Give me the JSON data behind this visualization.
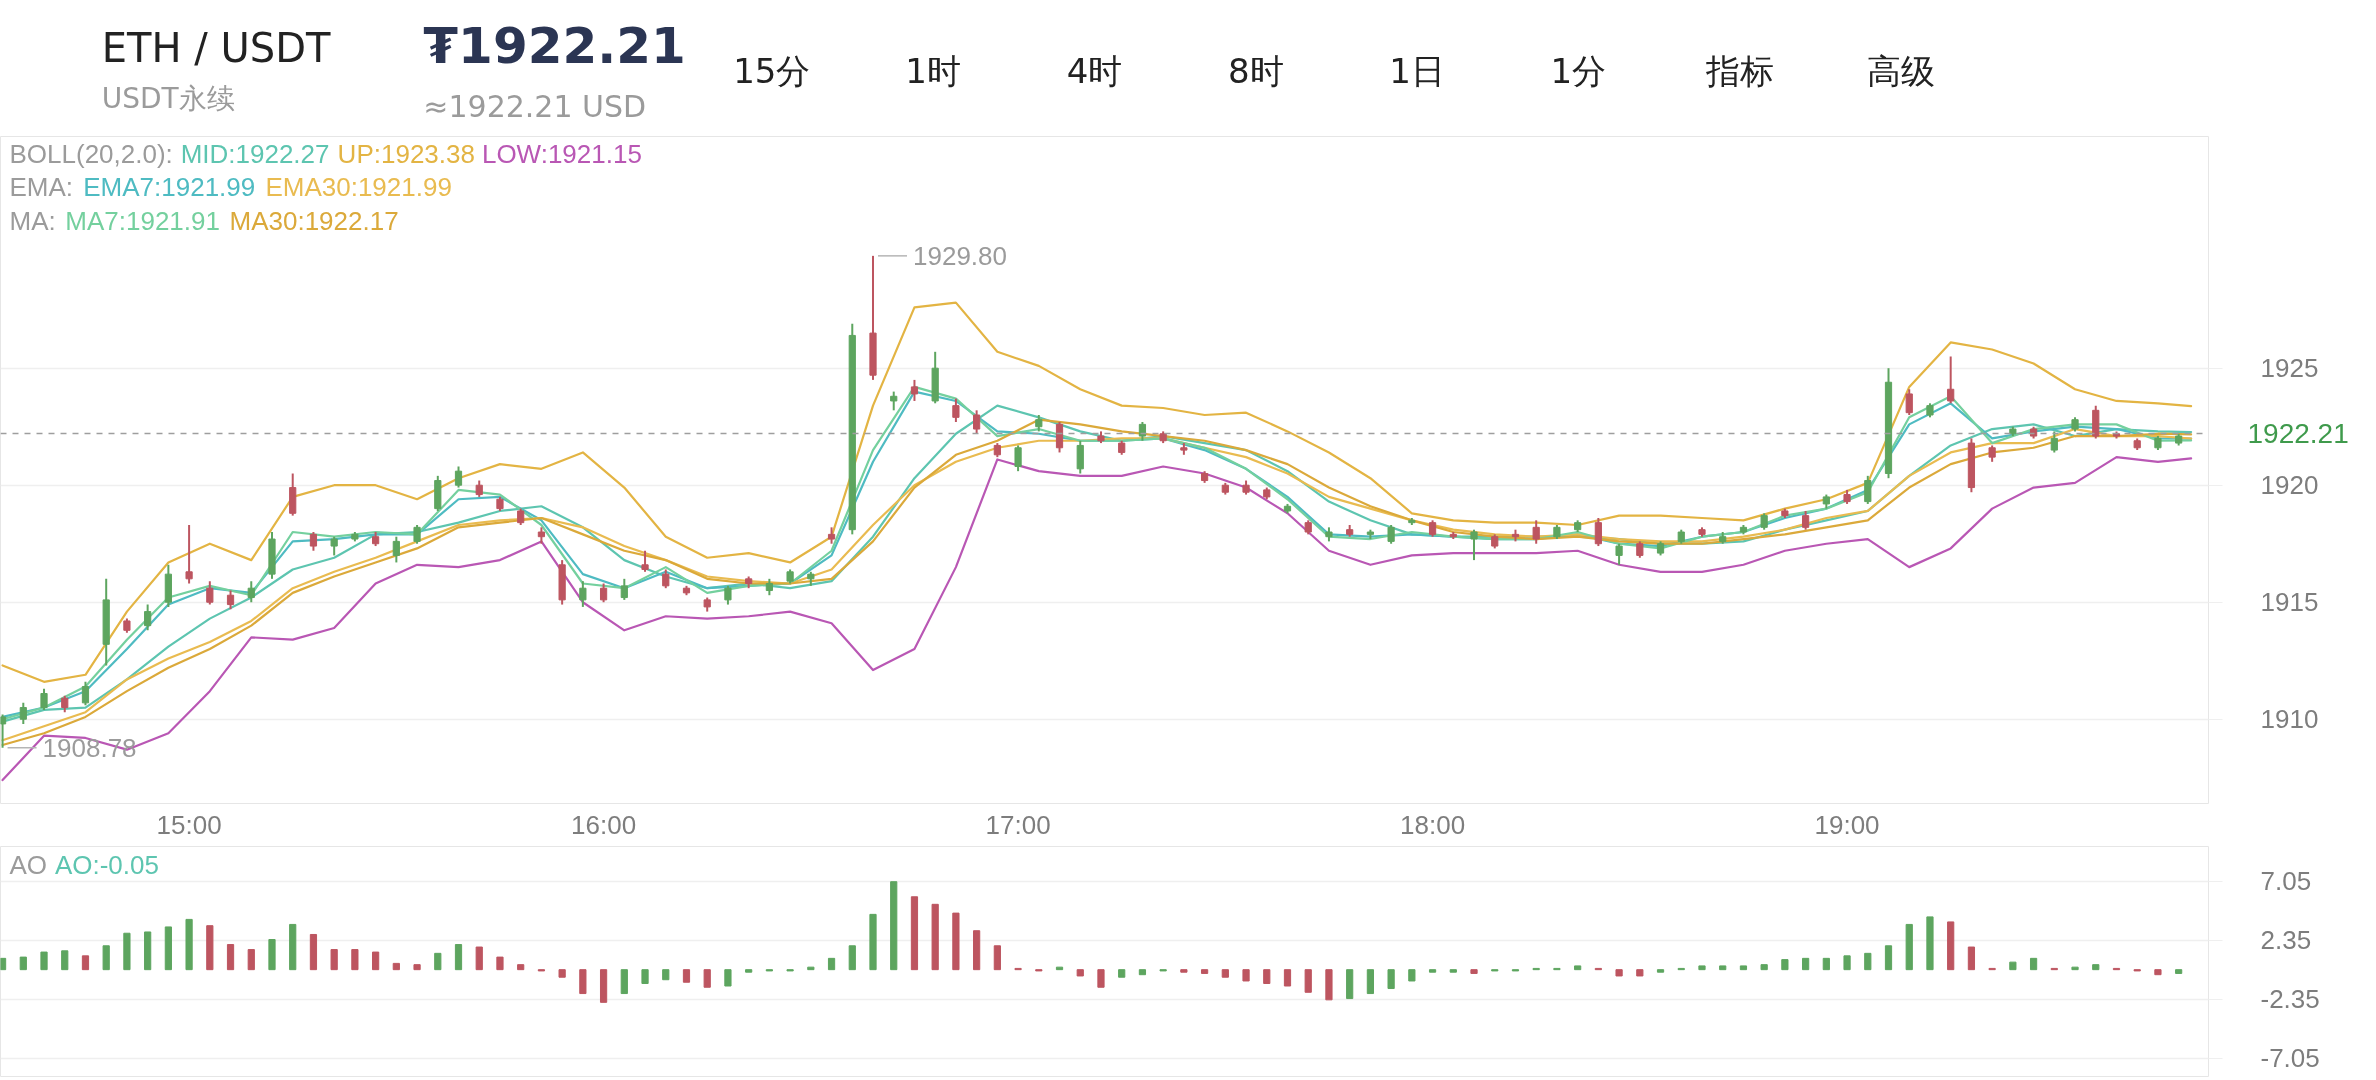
{
  "chart_data": [
    {
      "type": "other",
      "title": "ETH / USDT",
      "subtitle": "USDT永续",
      "annotations": [
        "₮1922.21",
        "≈1922.21 USD",
        "15分",
        "1时",
        "4时",
        "8时",
        "1日",
        "1分",
        "指标",
        "高级"
      ]
    },
    {
      "type": "candlestick",
      "x": [
        14.55,
        14.6,
        14.65,
        14.7,
        14.75,
        14.8,
        14.85,
        14.9,
        14.95,
        15,
        15.05,
        15.1,
        15.15,
        15.2,
        15.25,
        15.3,
        15.35,
        15.4,
        15.45,
        15.5,
        15.55,
        15.6,
        15.65,
        15.7,
        15.75,
        15.8,
        15.85,
        15.9,
        15.95,
        16,
        16.05,
        16.1,
        16.15,
        16.2,
        16.25,
        16.3,
        16.35,
        16.4,
        16.45,
        16.5,
        16.55,
        16.6,
        16.65,
        16.7,
        16.75,
        16.8,
        16.85,
        16.9,
        16.95,
        17,
        17.05,
        17.1,
        17.15,
        17.2,
        17.25,
        17.3,
        17.35,
        17.4,
        17.45,
        17.5,
        17.55,
        17.6,
        17.65,
        17.7,
        17.75,
        17.8,
        17.85,
        17.9,
        17.95,
        18,
        18.05,
        18.1,
        18.15,
        18.2,
        18.25,
        18.3,
        18.35,
        18.4,
        18.45,
        18.5,
        18.55,
        18.6,
        18.65,
        18.7,
        18.75,
        18.8,
        18.85,
        18.9,
        18.95,
        19,
        19.05,
        19.1,
        19.15,
        19.2,
        19.25,
        19.3,
        19.35,
        19.4,
        19.45,
        19.5,
        19.55,
        19.6,
        19.65,
        19.7,
        19.75,
        19.8
      ],
      "ohlc": [
        [
          1909.8,
          1910.2,
          1908.78,
          1910.1
        ],
        [
          1910.0,
          1910.7,
          1909.8,
          1910.5
        ],
        [
          1910.5,
          1911.3,
          1910.4,
          1911.1
        ],
        [
          1910.9,
          1911.0,
          1910.3,
          1910.5
        ],
        [
          1910.7,
          1911.6,
          1910.6,
          1911.4
        ],
        [
          1913.2,
          1916.0,
          1912.3,
          1915.1
        ],
        [
          1914.2,
          1914.3,
          1913.7,
          1913.8
        ],
        [
          1914.0,
          1914.9,
          1913.8,
          1914.6
        ],
        [
          1915.0,
          1916.6,
          1914.8,
          1916.2
        ],
        [
          1916.3,
          1918.3,
          1915.8,
          1916.0
        ],
        [
          1915.6,
          1915.9,
          1914.9,
          1915.0
        ],
        [
          1915.3,
          1915.5,
          1914.7,
          1914.9
        ],
        [
          1915.2,
          1915.9,
          1915.0,
          1915.6
        ],
        [
          1916.2,
          1918.0,
          1916.0,
          1917.7
        ],
        [
          1919.9,
          1920.5,
          1918.7,
          1918.8
        ],
        [
          1917.9,
          1918.0,
          1917.2,
          1917.4
        ],
        [
          1917.4,
          1917.8,
          1917.0,
          1917.7
        ],
        [
          1917.7,
          1918.0,
          1917.6,
          1917.9
        ],
        [
          1917.8,
          1918.0,
          1917.4,
          1917.5
        ],
        [
          1917.0,
          1917.8,
          1916.7,
          1917.6
        ],
        [
          1917.6,
          1918.3,
          1917.5,
          1918.2
        ],
        [
          1919.0,
          1920.4,
          1918.9,
          1920.2
        ],
        [
          1920.0,
          1920.8,
          1919.9,
          1920.6
        ],
        [
          1920.0,
          1920.2,
          1919.5,
          1919.6
        ],
        [
          1919.4,
          1919.5,
          1918.9,
          1919.0
        ],
        [
          1918.9,
          1919.0,
          1918.3,
          1918.4
        ],
        [
          1918.0,
          1918.2,
          1917.5,
          1917.8
        ],
        [
          1916.6,
          1916.8,
          1914.9,
          1915.1
        ],
        [
          1915.1,
          1915.9,
          1914.8,
          1915.6
        ],
        [
          1915.6,
          1915.8,
          1915.0,
          1915.1
        ],
        [
          1915.2,
          1916.0,
          1915.1,
          1915.7
        ],
        [
          1916.6,
          1917.2,
          1916.3,
          1916.4
        ],
        [
          1916.2,
          1916.4,
          1915.6,
          1915.7
        ],
        [
          1915.6,
          1915.7,
          1915.3,
          1915.4
        ],
        [
          1915.1,
          1915.2,
          1914.6,
          1914.8
        ],
        [
          1915.1,
          1915.7,
          1914.9,
          1915.6
        ],
        [
          1916.0,
          1916.1,
          1915.6,
          1915.8
        ],
        [
          1915.5,
          1916.0,
          1915.3,
          1915.8
        ],
        [
          1915.9,
          1916.4,
          1915.8,
          1916.3
        ],
        [
          1916.0,
          1916.3,
          1915.7,
          1916.2
        ],
        [
          1917.9,
          1918.2,
          1917.5,
          1917.7
        ],
        [
          1918.1,
          1926.9,
          1917.9,
          1926.4
        ],
        [
          1926.5,
          1929.8,
          1924.5,
          1924.7
        ],
        [
          1923.6,
          1924.0,
          1923.2,
          1923.8
        ],
        [
          1924.2,
          1924.5,
          1923.6,
          1923.9
        ],
        [
          1923.6,
          1925.7,
          1923.5,
          1925.0
        ],
        [
          1923.4,
          1923.7,
          1922.7,
          1922.9
        ],
        [
          1923.0,
          1923.2,
          1922.2,
          1922.4
        ],
        [
          1921.7,
          1921.8,
          1921.2,
          1921.3
        ],
        [
          1920.8,
          1921.7,
          1920.6,
          1921.6
        ],
        [
          1922.5,
          1923.0,
          1922.3,
          1922.8
        ],
        [
          1922.6,
          1922.7,
          1921.4,
          1921.6
        ],
        [
          1920.7,
          1921.9,
          1920.5,
          1921.7
        ],
        [
          1922.1,
          1922.3,
          1921.8,
          1921.9
        ],
        [
          1921.8,
          1921.9,
          1921.3,
          1921.4
        ],
        [
          1922.1,
          1922.7,
          1921.9,
          1922.6
        ],
        [
          1922.2,
          1922.3,
          1921.8,
          1921.9
        ],
        [
          1921.6,
          1921.8,
          1921.3,
          1921.5
        ],
        [
          1920.5,
          1920.6,
          1920.1,
          1920.2
        ],
        [
          1920.0,
          1920.1,
          1919.6,
          1919.7
        ],
        [
          1920.0,
          1920.2,
          1919.6,
          1919.7
        ],
        [
          1919.8,
          1919.9,
          1919.4,
          1919.5
        ],
        [
          1918.9,
          1919.2,
          1918.8,
          1919.1
        ],
        [
          1918.4,
          1918.5,
          1917.9,
          1918.0
        ],
        [
          1917.8,
          1918.2,
          1917.6,
          1918.0
        ],
        [
          1918.1,
          1918.3,
          1917.8,
          1917.9
        ],
        [
          1917.9,
          1918.1,
          1917.7,
          1918.0
        ],
        [
          1917.6,
          1918.3,
          1917.5,
          1918.2
        ],
        [
          1918.4,
          1918.6,
          1918.3,
          1918.5
        ],
        [
          1918.4,
          1918.5,
          1917.8,
          1917.9
        ],
        [
          1917.9,
          1918.0,
          1917.7,
          1917.8
        ],
        [
          1917.7,
          1918.1,
          1916.8,
          1918.0
        ],
        [
          1917.8,
          1917.9,
          1917.3,
          1917.4
        ],
        [
          1917.9,
          1918.1,
          1917.6,
          1917.8
        ],
        [
          1918.2,
          1918.5,
          1917.5,
          1917.7
        ],
        [
          1917.8,
          1918.3,
          1917.7,
          1918.2
        ],
        [
          1918.1,
          1918.5,
          1918.0,
          1918.4
        ],
        [
          1918.4,
          1918.6,
          1917.4,
          1917.5
        ],
        [
          1917.0,
          1917.5,
          1916.6,
          1917.4
        ],
        [
          1917.5,
          1917.6,
          1916.9,
          1917.0
        ],
        [
          1917.1,
          1917.6,
          1917.0,
          1917.5
        ],
        [
          1917.6,
          1918.1,
          1917.5,
          1918.0
        ],
        [
          1918.1,
          1918.2,
          1917.8,
          1917.9
        ],
        [
          1917.6,
          1918.0,
          1917.5,
          1917.8
        ],
        [
          1918.0,
          1918.3,
          1917.9,
          1918.2
        ],
        [
          1918.2,
          1918.8,
          1918.1,
          1918.7
        ],
        [
          1918.9,
          1919.0,
          1918.6,
          1918.7
        ],
        [
          1918.7,
          1918.9,
          1918.1,
          1918.2
        ],
        [
          1919.2,
          1919.6,
          1919.0,
          1919.5
        ],
        [
          1919.6,
          1919.8,
          1919.2,
          1919.3
        ],
        [
          1919.3,
          1920.4,
          1919.2,
          1920.2
        ],
        [
          1920.5,
          1925.0,
          1920.3,
          1924.4
        ],
        [
          1923.9,
          1924.1,
          1923.0,
          1923.1
        ],
        [
          1923.0,
          1923.5,
          1922.9,
          1923.4
        ],
        [
          1924.1,
          1925.5,
          1923.5,
          1923.6
        ],
        [
          1921.8,
          1922.0,
          1919.7,
          1919.9
        ],
        [
          1921.6,
          1921.7,
          1921.0,
          1921.2
        ],
        [
          1922.2,
          1922.5,
          1922.1,
          1922.4
        ],
        [
          1922.4,
          1922.5,
          1922.0,
          1922.1
        ],
        [
          1921.5,
          1922.3,
          1921.4,
          1922.0
        ],
        [
          1922.4,
          1922.9,
          1922.3,
          1922.8
        ],
        [
          1923.2,
          1923.4,
          1922.0,
          1922.1
        ],
        [
          1922.2,
          1922.3,
          1922.0,
          1922.1
        ],
        [
          1921.9,
          1922.0,
          1921.5,
          1921.6
        ],
        [
          1921.6,
          1922.1,
          1921.5,
          1922.0
        ],
        [
          1921.8,
          1922.2,
          1921.7,
          1922.1
        ]
      ],
      "colors": [
        "#5da55f",
        "#5da55f",
        "#5da55f",
        "#bd5560",
        "#5da55f",
        "#5da55f",
        "#bd5560",
        "#5da55f",
        "#5da55f",
        "#bd5560",
        "#bd5560",
        "#bd5560",
        "#5da55f",
        "#5da55f",
        "#bd5560",
        "#bd5560",
        "#5da55f",
        "#5da55f",
        "#bd5560",
        "#5da55f",
        "#5da55f",
        "#5da55f",
        "#5da55f",
        "#bd5560",
        "#bd5560",
        "#bd5560",
        "#bd5560",
        "#bd5560",
        "#5da55f",
        "#bd5560",
        "#5da55f",
        "#bd5560",
        "#bd5560",
        "#bd5560",
        "#bd5560",
        "#5da55f",
        "#bd5560",
        "#5da55f",
        "#5da55f",
        "#5da55f",
        "#bd5560",
        "#5da55f",
        "#bd5560",
        "#5da55f",
        "#bd5560",
        "#5da55f",
        "#bd5560",
        "#bd5560",
        "#bd5560",
        "#5da55f",
        "#5da55f",
        "#bd5560",
        "#5da55f",
        "#bd5560",
        "#bd5560",
        "#5da55f",
        "#bd5560",
        "#bd5560",
        "#bd5560",
        "#bd5560",
        "#bd5560",
        "#bd5560",
        "#5da55f",
        "#bd5560",
        "#5da55f",
        "#bd5560",
        "#5da55f",
        "#5da55f",
        "#5da55f",
        "#bd5560",
        "#bd5560",
        "#5da55f",
        "#bd5560",
        "#bd5560",
        "#bd5560",
        "#5da55f",
        "#5da55f",
        "#bd5560",
        "#5da55f",
        "#bd5560",
        "#5da55f",
        "#5da55f",
        "#bd5560",
        "#5da55f",
        "#5da55f",
        "#5da55f",
        "#bd5560",
        "#bd5560",
        "#5da55f",
        "#bd5560",
        "#5da55f",
        "#5da55f",
        "#bd5560",
        "#5da55f",
        "#bd5560",
        "#bd5560",
        "#bd5560",
        "#5da55f",
        "#bd5560",
        "#5da55f",
        "#5da55f",
        "#bd5560",
        "#bd5560",
        "#bd5560",
        "#5da55f",
        "#5da55f"
      ],
      "series": [
        {
          "name": "MID:1922.27",
          "type": "line",
          "color": "#5dc5b0",
          "x": [
            14.55,
            14.65,
            14.75,
            14.85,
            14.95,
            15.05,
            15.15,
            15.25,
            15.35,
            15.45,
            15.55,
            15.65,
            15.75,
            15.85,
            15.95,
            16.05,
            16.15,
            16.25,
            16.35,
            16.45,
            16.55,
            16.65,
            16.75,
            16.85,
            16.95,
            17.05,
            17.15,
            17.25,
            17.35,
            17.45,
            17.55,
            17.65,
            17.75,
            17.85,
            17.95,
            18.05,
            18.15,
            18.25,
            18.35,
            18.45,
            18.55,
            18.65,
            18.75,
            18.85,
            18.95,
            19.05,
            19.15,
            19.25,
            19.35,
            19.45,
            19.55,
            19.65,
            19.75,
            19.83
          ],
          "values": [
            1909.9,
            1910.4,
            1910.5,
            1911.7,
            1913.1,
            1914.3,
            1915.2,
            1916.4,
            1916.9,
            1917.9,
            1918.0,
            1918.4,
            1918.9,
            1919.1,
            1918.2,
            1916.8,
            1916.1,
            1915.6,
            1915.8,
            1915.6,
            1915.9,
            1917.8,
            1920.3,
            1922.2,
            1923.4,
            1922.9,
            1922.3,
            1921.9,
            1922.1,
            1921.8,
            1921.5,
            1920.6,
            1919.3,
            1918.5,
            1917.9,
            1917.8,
            1917.8,
            1917.8,
            1917.8,
            1917.7,
            1917.5,
            1917.5,
            1917.6,
            1918.1,
            1918.5,
            1918.9,
            1920.4,
            1921.7,
            1922.4,
            1922.6,
            1922.1,
            1922.4,
            1922.3,
            1922.27
          ]
        },
        {
          "name": "UP:1923.38",
          "type": "line",
          "color": "#e3b443",
          "x": [
            14.55,
            14.65,
            14.75,
            14.85,
            14.95,
            15.05,
            15.15,
            15.25,
            15.35,
            15.45,
            15.55,
            15.65,
            15.75,
            15.85,
            15.95,
            16.05,
            16.15,
            16.25,
            16.35,
            16.45,
            16.55,
            16.65,
            16.75,
            16.85,
            16.95,
            17.05,
            17.15,
            17.25,
            17.35,
            17.45,
            17.55,
            17.65,
            17.75,
            17.85,
            17.95,
            18.05,
            18.15,
            18.25,
            18.35,
            18.45,
            18.55,
            18.65,
            18.75,
            18.85,
            18.95,
            19.05,
            19.15,
            19.25,
            19.35,
            19.45,
            19.55,
            19.65,
            19.75,
            19.83
          ],
          "values": [
            1912.3,
            1911.6,
            1911.9,
            1914.6,
            1916.7,
            1917.5,
            1916.8,
            1919.5,
            1920.0,
            1920.0,
            1919.4,
            1920.3,
            1920.9,
            1920.7,
            1921.4,
            1919.9,
            1917.8,
            1916.9,
            1917.1,
            1916.7,
            1917.8,
            1923.4,
            1927.6,
            1927.8,
            1925.7,
            1925.1,
            1924.1,
            1923.4,
            1923.3,
            1923.0,
            1923.1,
            1922.3,
            1921.4,
            1920.3,
            1918.8,
            1918.5,
            1918.4,
            1918.4,
            1918.3,
            1918.7,
            1918.7,
            1918.6,
            1918.5,
            1919.0,
            1919.4,
            1920.1,
            1924.2,
            1926.1,
            1925.8,
            1925.2,
            1924.1,
            1923.6,
            1923.5,
            1923.38
          ]
        },
        {
          "name": "LOW:1921.15",
          "type": "line",
          "color": "#b957b4",
          "x": [
            14.55,
            14.65,
            14.75,
            14.85,
            14.95,
            15.05,
            15.15,
            15.25,
            15.35,
            15.45,
            15.55,
            15.65,
            15.75,
            15.85,
            15.95,
            16.05,
            16.15,
            16.25,
            16.35,
            16.45,
            16.55,
            16.65,
            16.75,
            16.85,
            16.95,
            17.05,
            17.15,
            17.25,
            17.35,
            17.45,
            17.55,
            17.65,
            17.75,
            17.85,
            17.95,
            18.05,
            18.15,
            18.25,
            18.35,
            18.45,
            18.55,
            18.65,
            18.75,
            18.85,
            18.95,
            19.05,
            19.15,
            19.25,
            19.35,
            19.45,
            19.55,
            19.65,
            19.75,
            19.83
          ],
          "values": [
            1907.4,
            1909.3,
            1909.2,
            1908.7,
            1909.4,
            1911.2,
            1913.5,
            1913.4,
            1913.9,
            1915.8,
            1916.6,
            1916.5,
            1916.8,
            1917.6,
            1915.0,
            1913.8,
            1914.4,
            1914.3,
            1914.4,
            1914.6,
            1914.1,
            1912.1,
            1913.0,
            1916.5,
            1921.1,
            1920.6,
            1920.4,
            1920.4,
            1920.8,
            1920.5,
            1919.9,
            1918.8,
            1917.2,
            1916.6,
            1917.0,
            1917.1,
            1917.1,
            1917.1,
            1917.2,
            1916.6,
            1916.3,
            1916.3,
            1916.6,
            1917.2,
            1917.5,
            1917.7,
            1916.5,
            1917.3,
            1919.0,
            1919.9,
            1920.1,
            1921.2,
            1921.0,
            1921.15
          ]
        },
        {
          "name": "EMA7:1921.99",
          "type": "line",
          "color": "#4ebbc2",
          "x": [
            14.55,
            14.65,
            14.75,
            14.85,
            14.95,
            15.05,
            15.15,
            15.25,
            15.35,
            15.45,
            15.55,
            15.65,
            15.75,
            15.85,
            15.95,
            16.05,
            16.15,
            16.25,
            16.35,
            16.45,
            16.55,
            16.65,
            16.75,
            16.85,
            16.95,
            17.05,
            17.15,
            17.25,
            17.35,
            17.45,
            17.55,
            17.65,
            17.75,
            17.85,
            17.95,
            18.05,
            18.15,
            18.25,
            18.35,
            18.45,
            18.55,
            18.65,
            18.75,
            18.85,
            18.95,
            19.05,
            19.15,
            19.25,
            19.35,
            19.45,
            19.55,
            19.65,
            19.75,
            19.83
          ],
          "values": [
            1910.1,
            1910.5,
            1911.2,
            1913.0,
            1914.9,
            1915.6,
            1915.4,
            1917.6,
            1917.7,
            1917.9,
            1917.9,
            1919.4,
            1919.5,
            1918.5,
            1916.2,
            1915.6,
            1916.3,
            1915.6,
            1915.7,
            1915.8,
            1917.0,
            1921.0,
            1924.0,
            1923.6,
            1922.3,
            1922.2,
            1921.9,
            1921.9,
            1922.0,
            1921.5,
            1920.7,
            1919.5,
            1917.9,
            1917.8,
            1917.9,
            1917.8,
            1917.7,
            1917.7,
            1917.9,
            1917.5,
            1917.4,
            1917.8,
            1918.0,
            1918.6,
            1919.0,
            1919.8,
            1922.6,
            1923.5,
            1922.0,
            1922.3,
            1922.5,
            1922.4,
            1922.0,
            1921.99
          ]
        },
        {
          "name": "EMA30:1921.99",
          "type": "line",
          "color": "#e9bb50",
          "x": [
            14.55,
            14.65,
            14.75,
            14.85,
            14.95,
            15.05,
            15.15,
            15.25,
            15.35,
            15.45,
            15.55,
            15.65,
            15.75,
            15.85,
            15.95,
            16.05,
            16.15,
            16.25,
            16.35,
            16.45,
            16.55,
            16.65,
            16.75,
            16.85,
            16.95,
            17.05,
            17.15,
            17.25,
            17.35,
            17.45,
            17.55,
            17.65,
            17.75,
            17.85,
            17.95,
            18.05,
            18.15,
            18.25,
            18.35,
            18.45,
            18.55,
            18.65,
            18.75,
            18.85,
            18.95,
            19.05,
            19.15,
            19.25,
            19.35,
            19.45,
            19.55,
            19.65,
            19.75,
            19.83
          ],
          "values": [
            1909.1,
            1909.7,
            1910.3,
            1911.7,
            1912.6,
            1913.3,
            1914.2,
            1915.6,
            1916.3,
            1916.9,
            1917.6,
            1918.3,
            1918.5,
            1918.6,
            1918.2,
            1917.4,
            1916.8,
            1916.1,
            1915.9,
            1915.8,
            1916.4,
            1918.3,
            1920.0,
            1921.0,
            1921.6,
            1921.9,
            1921.9,
            1922.0,
            1922.0,
            1921.6,
            1921.2,
            1920.5,
            1919.5,
            1919.0,
            1918.5,
            1918.1,
            1917.9,
            1917.8,
            1917.9,
            1917.7,
            1917.6,
            1917.6,
            1917.8,
            1918.1,
            1918.6,
            1918.9,
            1920.4,
            1921.4,
            1921.8,
            1921.8,
            1922.4,
            1922.1,
            1922.1,
            1921.99
          ]
        },
        {
          "name": "MA7:1921.91",
          "type": "line",
          "color": "#74d09e",
          "x": [
            14.55,
            14.65,
            14.75,
            14.85,
            14.95,
            15.05,
            15.15,
            15.25,
            15.35,
            15.45,
            15.55,
            15.65,
            15.75,
            15.85,
            15.95,
            16.05,
            16.15,
            16.25,
            16.35,
            16.45,
            16.55,
            16.65,
            16.75,
            16.85,
            16.95,
            17.05,
            17.15,
            17.25,
            17.35,
            17.45,
            17.55,
            17.65,
            17.75,
            17.85,
            17.95,
            18.05,
            18.15,
            18.25,
            18.35,
            18.45,
            18.55,
            18.65,
            18.75,
            18.85,
            18.95,
            19.05,
            19.15,
            19.25,
            19.35,
            19.45,
            19.55,
            19.65,
            19.75,
            19.83
          ],
          "values": [
            1910.0,
            1910.5,
            1911.4,
            1913.4,
            1915.2,
            1915.7,
            1915.3,
            1918.0,
            1917.8,
            1918.0,
            1917.9,
            1919.8,
            1919.6,
            1918.3,
            1915.8,
            1915.6,
            1916.5,
            1915.4,
            1915.7,
            1915.8,
            1917.2,
            1921.5,
            1924.2,
            1923.7,
            1922.1,
            1922.4,
            1921.9,
            1921.9,
            1922.0,
            1921.6,
            1920.7,
            1919.4,
            1917.8,
            1917.7,
            1918.0,
            1917.8,
            1917.7,
            1917.7,
            1918.0,
            1917.5,
            1917.3,
            1917.8,
            1918.0,
            1918.7,
            1919.0,
            1919.7,
            1922.9,
            1923.8,
            1921.8,
            1922.4,
            1922.6,
            1922.6,
            1921.9,
            1921.91
          ]
        },
        {
          "name": "MA30:1922.17",
          "type": "line",
          "color": "#dba93a",
          "x": [
            14.55,
            14.65,
            14.75,
            14.85,
            14.95,
            15.05,
            15.15,
            15.25,
            15.35,
            15.45,
            15.55,
            15.65,
            15.75,
            15.85,
            15.95,
            16.05,
            16.15,
            16.25,
            16.35,
            16.45,
            16.55,
            16.65,
            16.75,
            16.85,
            16.95,
            17.05,
            17.15,
            17.25,
            17.35,
            17.45,
            17.55,
            17.65,
            17.75,
            17.85,
            17.95,
            18.05,
            18.15,
            18.25,
            18.35,
            18.45,
            18.55,
            18.65,
            18.75,
            18.85,
            18.95,
            19.05,
            19.15,
            19.25,
            19.35,
            19.45,
            19.55,
            19.65,
            19.75,
            19.83
          ],
          "values": [
            1908.9,
            1909.4,
            1910.1,
            1911.2,
            1912.2,
            1913.0,
            1914.0,
            1915.4,
            1916.1,
            1916.7,
            1917.3,
            1918.2,
            1918.4,
            1918.6,
            1917.9,
            1917.2,
            1916.8,
            1916.0,
            1915.8,
            1915.8,
            1916.0,
            1917.6,
            1919.9,
            1921.3,
            1921.9,
            1922.8,
            1922.6,
            1922.3,
            1922.1,
            1921.9,
            1921.5,
            1920.9,
            1919.9,
            1919.1,
            1918.5,
            1918.0,
            1917.8,
            1917.7,
            1917.8,
            1917.6,
            1917.5,
            1917.5,
            1917.7,
            1917.9,
            1918.2,
            1918.5,
            1919.9,
            1920.9,
            1921.4,
            1921.6,
            1922.1,
            1922.1,
            1922.2,
            1922.17
          ]
        }
      ],
      "xlim": [
        14.545,
        19.872
      ],
      "xticks": [
        {
          "value": 15,
          "label": "15:00"
        },
        {
          "value": 16,
          "label": "16:00"
        },
        {
          "value": 17,
          "label": "17:00"
        },
        {
          "value": 18,
          "label": "18:00"
        },
        {
          "value": 19,
          "label": "19:00"
        }
      ],
      "ylim": [
        1906.4,
        1934.9
      ],
      "yticks": [
        1910,
        1915,
        1920,
        1925
      ],
      "grid": "y",
      "legend": "top left",
      "ref_lines": [
        {
          "axis": "y",
          "value": 1922.21,
          "label": "1922.21",
          "color": "#9e9e9e",
          "line_style": "dashed"
        }
      ],
      "annotations": [
        "BOLL(20,2.0):",
        "EMA:",
        "MA:",
        {
          "text": "1929.80",
          "x": 16.65,
          "y": 1929.8
        },
        {
          "text": "1908.78",
          "x": 14.55,
          "y": 1908.78
        }
      ]
    },
    {
      "type": "bar",
      "title": "AO",
      "subtitle": "AO:-0.05",
      "x": [
        14.55,
        14.6,
        14.65,
        14.7,
        14.75,
        14.8,
        14.85,
        14.9,
        14.95,
        15,
        15.05,
        15.1,
        15.15,
        15.2,
        15.25,
        15.3,
        15.35,
        15.4,
        15.45,
        15.5,
        15.55,
        15.6,
        15.65,
        15.7,
        15.75,
        15.8,
        15.85,
        15.9,
        15.95,
        16,
        16.05,
        16.1,
        16.15,
        16.2,
        16.25,
        16.3,
        16.35,
        16.4,
        16.45,
        16.5,
        16.55,
        16.6,
        16.65,
        16.7,
        16.75,
        16.8,
        16.85,
        16.9,
        16.95,
        17,
        17.05,
        17.1,
        17.15,
        17.2,
        17.25,
        17.3,
        17.35,
        17.4,
        17.45,
        17.5,
        17.55,
        17.6,
        17.65,
        17.7,
        17.75,
        17.8,
        17.85,
        17.9,
        17.95,
        18,
        18.05,
        18.1,
        18.15,
        18.2,
        18.25,
        18.3,
        18.35,
        18.4,
        18.45,
        18.5,
        18.55,
        18.6,
        18.65,
        18.7,
        18.75,
        18.8,
        18.85,
        18.9,
        18.95,
        19,
        19.05,
        19.1,
        19.15,
        19.2,
        19.25,
        19.3,
        19.35,
        19.4,
        19.45,
        19.5,
        19.55,
        19.6,
        19.65,
        19.7,
        19.75,
        19.8
      ],
      "values": [
        0.9,
        1.0,
        1.4,
        1.5,
        1.1,
        1.9,
        2.9,
        3.0,
        3.4,
        4.0,
        3.5,
        2.0,
        1.6,
        2.4,
        3.6,
        2.8,
        1.6,
        1.6,
        1.4,
        0.5,
        0.4,
        1.3,
        2.0,
        1.8,
        1.0,
        0.4,
        -0.1,
        -0.6,
        -1.9,
        -2.6,
        -1.9,
        -1.1,
        -0.8,
        -1.0,
        -1.4,
        -1.3,
        -0.2,
        -0.1,
        -0.1,
        0.2,
        0.9,
        1.9,
        4.4,
        7.0,
        5.8,
        5.2,
        4.5,
        3.1,
        1.9,
        0.1,
        -0.1,
        0.2,
        -0.5,
        -1.4,
        -0.6,
        -0.4,
        -0.1,
        -0.2,
        -0.3,
        -0.6,
        -0.9,
        -1.1,
        -1.3,
        -1.8,
        -2.4,
        -2.3,
        -1.9,
        -1.5,
        -0.9,
        -0.2,
        -0.2,
        -0.3,
        -0.1,
        -0.1,
        0.1,
        0.1,
        0.3,
        0.1,
        -0.5,
        -0.5,
        -0.2,
        0.1,
        0.3,
        0.3,
        0.3,
        0.4,
        0.8,
        0.9,
        0.9,
        1.1,
        1.3,
        1.9,
        3.6,
        4.2,
        3.8,
        1.8,
        0.1,
        0.6,
        0.9,
        0.1,
        0.2,
        0.4,
        0.1,
        -0.1,
        -0.4,
        -0.3
      ],
      "colors": [
        "#5da55f",
        "#5da55f",
        "#5da55f",
        "#5da55f",
        "#bd5560",
        "#5da55f",
        "#5da55f",
        "#5da55f",
        "#5da55f",
        "#5da55f",
        "#bd5560",
        "#bd5560",
        "#bd5560",
        "#5da55f",
        "#5da55f",
        "#bd5560",
        "#bd5560",
        "#bd5560",
        "#bd5560",
        "#bd5560",
        "#bd5560",
        "#5da55f",
        "#5da55f",
        "#bd5560",
        "#bd5560",
        "#bd5560",
        "#bd5560",
        "#bd5560",
        "#bd5560",
        "#bd5560",
        "#5da55f",
        "#5da55f",
        "#5da55f",
        "#bd5560",
        "#bd5560",
        "#5da55f",
        "#5da55f",
        "#5da55f",
        "#5da55f",
        "#5da55f",
        "#5da55f",
        "#5da55f",
        "#5da55f",
        "#5da55f",
        "#bd5560",
        "#bd5560",
        "#bd5560",
        "#bd5560",
        "#bd5560",
        "#bd5560",
        "#bd5560",
        "#5da55f",
        "#bd5560",
        "#bd5560",
        "#5da55f",
        "#5da55f",
        "#5da55f",
        "#bd5560",
        "#bd5560",
        "#bd5560",
        "#bd5560",
        "#bd5560",
        "#bd5560",
        "#bd5560",
        "#bd5560",
        "#5da55f",
        "#5da55f",
        "#5da55f",
        "#5da55f",
        "#5da55f",
        "#5da55f",
        "#bd5560",
        "#5da55f",
        "#5da55f",
        "#5da55f",
        "#5da55f",
        "#5da55f",
        "#bd5560",
        "#bd5560",
        "#bd5560",
        "#5da55f",
        "#5da55f",
        "#5da55f",
        "#5da55f",
        "#5da55f",
        "#5da55f",
        "#5da55f",
        "#5da55f",
        "#5da55f",
        "#5da55f",
        "#5da55f",
        "#5da55f",
        "#5da55f",
        "#5da55f",
        "#bd5560",
        "#bd5560",
        "#bd5560",
        "#5da55f",
        "#5da55f",
        "#bd5560",
        "#5da55f",
        "#5da55f",
        "#bd5560",
        "#bd5560",
        "#bd5560",
        "#5da55f"
      ],
      "xlim": [
        14.545,
        19.872
      ],
      "ylim": [
        -8.5,
        9.8
      ],
      "yticks": [
        7.05,
        2.35,
        -2.35,
        -7.05
      ],
      "grid": "y",
      "tick_labels": "y"
    }
  ]
}
